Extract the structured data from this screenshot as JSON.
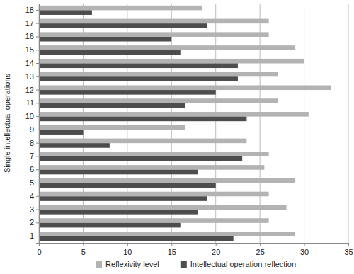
{
  "chart_data": {
    "type": "bar",
    "orientation": "horizontal",
    "y_label": "Single intellectual operations",
    "categories": [
      "1",
      "2",
      "3",
      "4",
      "5",
      "6",
      "7",
      "8",
      "9",
      "10",
      "11",
      "12",
      "13",
      "14",
      "15",
      "16",
      "17",
      "18"
    ],
    "series": [
      {
        "name": "Reflexivity level",
        "color": "#b3b3b3",
        "values": [
          29,
          26,
          28,
          26,
          29,
          25.5,
          26,
          23.5,
          16.5,
          30.5,
          27,
          33,
          27,
          30,
          29,
          26,
          26,
          18.5
        ]
      },
      {
        "name": "Intellectual operation reflection",
        "color": "#4d4d4d",
        "values": [
          22,
          16,
          18,
          19,
          20,
          18,
          23,
          8,
          5,
          23.5,
          16.5,
          20,
          22.5,
          22.5,
          16,
          15,
          19,
          6
        ]
      }
    ],
    "xlim": [
      0,
      35
    ],
    "xticks": [
      0,
      5,
      10,
      15,
      20,
      25,
      30,
      35
    ],
    "grid": true,
    "legend": "bottom"
  }
}
